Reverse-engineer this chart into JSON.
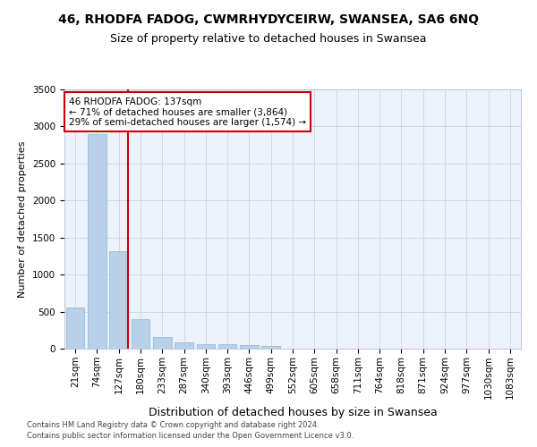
{
  "title": "46, RHODFA FADOG, CWMRHYDYCEIRW, SWANSEA, SA6 6NQ",
  "subtitle": "Size of property relative to detached houses in Swansea",
  "xlabel": "Distribution of detached houses by size in Swansea",
  "ylabel": "Number of detached properties",
  "categories": [
    "21sqm",
    "74sqm",
    "127sqm",
    "180sqm",
    "233sqm",
    "287sqm",
    "340sqm",
    "393sqm",
    "446sqm",
    "499sqm",
    "552sqm",
    "605sqm",
    "658sqm",
    "711sqm",
    "764sqm",
    "818sqm",
    "871sqm",
    "924sqm",
    "977sqm",
    "1030sqm",
    "1083sqm"
  ],
  "values": [
    560,
    2900,
    1320,
    400,
    155,
    90,
    60,
    55,
    45,
    35,
    0,
    0,
    0,
    0,
    0,
    0,
    0,
    0,
    0,
    0,
    0
  ],
  "bar_color": "#b8d0e8",
  "bar_edge_color": "#8ab4d4",
  "highlight_color": "#cc0000",
  "annotation_text": "46 RHODFA FADOG: 137sqm\n← 71% of detached houses are smaller (3,864)\n29% of semi-detached houses are larger (1,574) →",
  "annotation_box_color": "#ffffff",
  "annotation_box_edge": "#cc0000",
  "ylim": [
    0,
    3500
  ],
  "yticks": [
    0,
    500,
    1000,
    1500,
    2000,
    2500,
    3000,
    3500
  ],
  "footer_line1": "Contains HM Land Registry data © Crown copyright and database right 2024.",
  "footer_line2": "Contains public sector information licensed under the Open Government Licence v3.0.",
  "bg_color": "#edf2fa",
  "title_fontsize": 10,
  "subtitle_fontsize": 9,
  "ylabel_fontsize": 8,
  "xlabel_fontsize": 9,
  "tick_fontsize": 7.5,
  "annotation_fontsize": 7.5,
  "footer_fontsize": 6
}
